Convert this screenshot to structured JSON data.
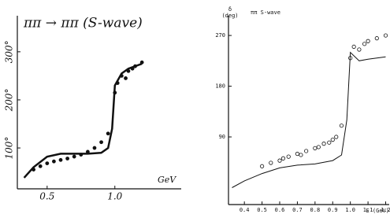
{
  "chart_data": [
    {
      "type": "line",
      "title": "ππ → ππ (S-wave)",
      "x_label": "GeV",
      "xlim": [
        0.28,
        1.49
      ],
      "ylim": [
        15,
        375
      ],
      "xticks": [
        0.5,
        {
          "value": 1,
          "label": "1.0"
        }
      ],
      "yticks": [
        {
          "value": 100,
          "label": "100°"
        },
        {
          "value": 200,
          "label": "200°"
        },
        {
          "value": 300,
          "label": "300°"
        }
      ],
      "color": "#111",
      "curve": {
        "x": [
          0.33,
          0.4,
          0.5,
          0.6,
          0.7,
          0.8,
          0.9,
          0.95,
          0.98,
          1.0,
          1.05,
          1.1,
          1.2
        ],
        "values": [
          38,
          60,
          82,
          88,
          88,
          88,
          90,
          100,
          140,
          230,
          255,
          265,
          275
        ]
      },
      "points": {
        "x": [
          0.4,
          0.45,
          0.5,
          0.55,
          0.6,
          0.65,
          0.7,
          0.75,
          0.8,
          0.85,
          0.9,
          0.95,
          1.0,
          1.02,
          1.05,
          1.08,
          1.1,
          1.13,
          1.15,
          1.2
        ],
        "values": [
          55,
          62,
          68,
          72,
          75,
          78,
          82,
          86,
          92,
          100,
          112,
          130,
          215,
          235,
          250,
          245,
          260,
          265,
          270,
          278
        ]
      }
    },
    {
      "type": "line",
      "title": "ππ S-wave",
      "y_label": "δ\n(deg)",
      "x_label": "E (GeV)",
      "xlim": [
        0.31,
        1.22
      ],
      "ylim": [
        -30,
        305
      ],
      "xticks": [
        0.4,
        0.5,
        0.6,
        0.7,
        0.8,
        0.9,
        {
          "value": 1,
          "label": "1.0"
        },
        1.1,
        1.2
      ],
      "yticks": [
        90,
        180,
        270
      ],
      "color": "#111",
      "curve": {
        "x": [
          0.33,
          0.4,
          0.5,
          0.6,
          0.7,
          0.8,
          0.9,
          0.95,
          0.98,
          1.0,
          1.05,
          1.1,
          1.2
        ],
        "values": [
          0,
          12,
          25,
          35,
          40,
          42,
          48,
          58,
          120,
          240,
          225,
          228,
          232
        ]
      },
      "points": {
        "x": [
          0.5,
          0.55,
          0.6,
          0.62,
          0.65,
          0.7,
          0.72,
          0.75,
          0.8,
          0.82,
          0.85,
          0.88,
          0.9,
          0.92,
          0.95,
          1.0,
          1.02,
          1.05,
          1.08,
          1.1,
          1.15,
          1.2
        ],
        "values": [
          38,
          44,
          48,
          52,
          55,
          60,
          58,
          65,
          70,
          72,
          78,
          80,
          85,
          90,
          110,
          230,
          250,
          245,
          255,
          260,
          265,
          270
        ]
      }
    }
  ]
}
